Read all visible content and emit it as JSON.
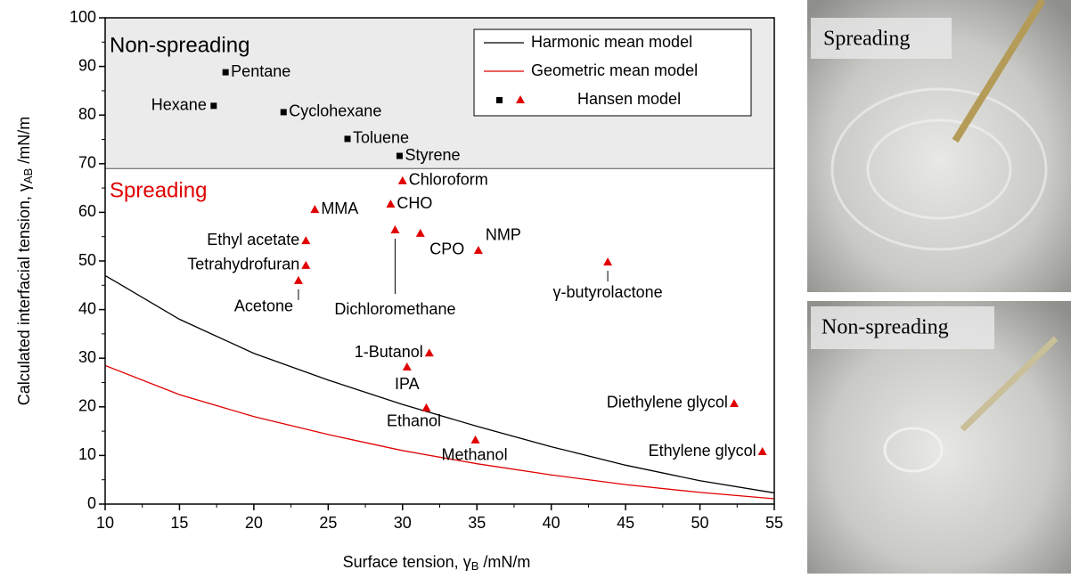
{
  "chart_data": {
    "type": "scatter",
    "x_label": "Surface tension, γ",
    "x_label_sub": "B",
    "x_label_unit": " /mN/m",
    "y_label": "Calculated interfacial tension, γ",
    "y_label_sub": "AB",
    "y_label_unit": " /mN/m",
    "xlim": [
      10,
      55
    ],
    "xticks": [
      10,
      15,
      20,
      25,
      30,
      35,
      40,
      45,
      50,
      55
    ],
    "ylim": [
      0,
      100
    ],
    "yticks": [
      0,
      10,
      20,
      30,
      40,
      50,
      60,
      70,
      80,
      90,
      100
    ],
    "region_boundary": 69,
    "annotations": [
      {
        "text": "Non-spreading",
        "color": "#000000"
      },
      {
        "text": "Spreading",
        "color": "#e00000"
      }
    ],
    "lines": [
      {
        "name": "Harmonic mean model",
        "color": "#000000",
        "x": [
          10,
          15,
          20,
          25,
          30,
          35,
          40,
          45,
          50,
          55
        ],
        "values": [
          47,
          38,
          31,
          25.5,
          20.5,
          16,
          11.8,
          8,
          4.8,
          2.3
        ]
      },
      {
        "name": "Geometric mean model",
        "color": "#e00000",
        "x": [
          10,
          15,
          20,
          25,
          30,
          35,
          40,
          45,
          50,
          55
        ],
        "values": [
          28.5,
          22.5,
          18,
          14.3,
          11,
          8.3,
          6,
          4,
          2.4,
          1.1
        ]
      }
    ],
    "points": {
      "name": "Hansen model",
      "groups": [
        {
          "color": "#000000",
          "marker": "square",
          "labels": [
            "Pentane",
            "Hexane",
            "Cyclohexane",
            "Toluene",
            "Styrene"
          ],
          "x": [
            18.1,
            17.3,
            22.0,
            26.3,
            29.8
          ],
          "values": [
            88.8,
            81.9,
            80.6,
            75.1,
            71.6
          ]
        },
        {
          "color": "#e00000",
          "marker": "triangle",
          "labels": [
            "Chloroform",
            "MMA",
            "CHO",
            "Ethyl acetate",
            "Dichloromethane",
            "CPO",
            "NMP",
            "Tetrahydrofuran",
            "γ-butyrolactone",
            "Acetone",
            "1-Butanol",
            "IPA",
            "Ethanol",
            "Methanol",
            "Diethylene glycol",
            "Ethylene glycol"
          ],
          "x": [
            30.0,
            24.1,
            29.2,
            23.5,
            29.5,
            31.2,
            35.1,
            23.5,
            43.8,
            23.0,
            31.8,
            30.3,
            31.6,
            34.9,
            52.3,
            54.2
          ],
          "values": [
            66.5,
            60.6,
            61.7,
            54.2,
            56.4,
            55.7,
            52.2,
            49.1,
            49.8,
            46.0,
            31.1,
            28.2,
            19.8,
            13.2,
            20.7,
            10.8
          ]
        }
      ]
    }
  },
  "photos": [
    {
      "label": "Spreading"
    },
    {
      "label": "Non-spreading"
    }
  ]
}
